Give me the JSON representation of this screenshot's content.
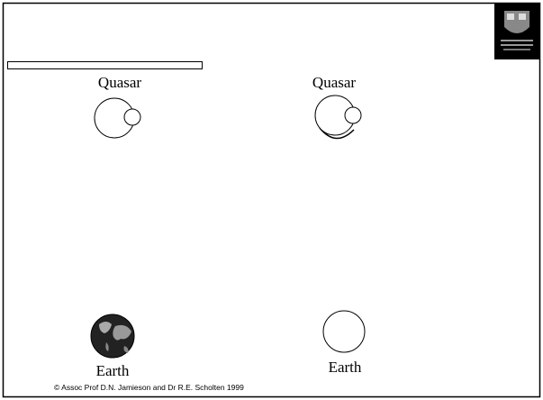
{
  "left_panel": {
    "quasar": "Quasar",
    "earth": "Earth"
  },
  "right_panel": {
    "quasar": "Quasar",
    "earth": "Earth"
  },
  "footer": "© Assoc Prof D.N. Jamieson and Dr R.E. Scholten 1999"
}
